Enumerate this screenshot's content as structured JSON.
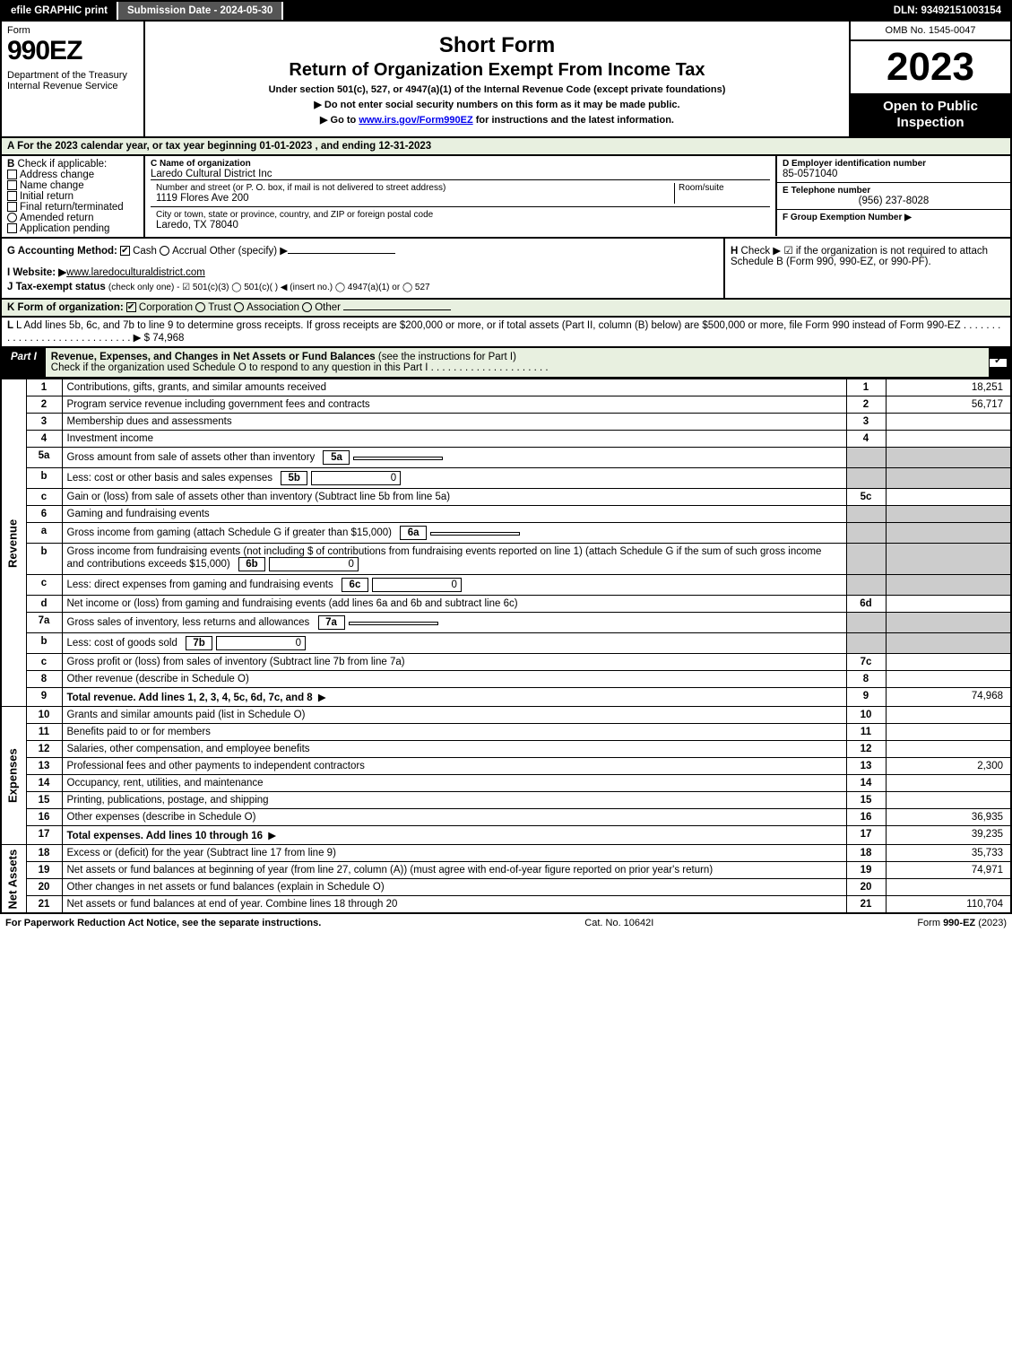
{
  "topbar": {
    "efile": "efile GRAPHIC print",
    "subdate": "Submission Date - 2024-05-30",
    "dln": "DLN: 93492151003154"
  },
  "header": {
    "form_label": "Form",
    "form_num": "990EZ",
    "dept": "Department of the Treasury\nInternal Revenue Service",
    "title1": "Short Form",
    "title2": "Return of Organization Exempt From Income Tax",
    "sub1": "Under section 501(c), 527, or 4947(a)(1) of the Internal Revenue Code (except private foundations)",
    "sub2": "▶ Do not enter social security numbers on this form as it may be made public.",
    "sub3_pre": "▶ Go to ",
    "sub3_link": "www.irs.gov/Form990EZ",
    "sub3_post": " for instructions and the latest information.",
    "omb": "OMB No. 1545-0047",
    "year": "2023",
    "openpub": "Open to Public Inspection"
  },
  "a": "A  For the 2023 calendar year, or tax year beginning 01-01-2023 , and ending 12-31-2023",
  "b": {
    "label": "B",
    "check": "Check if applicable:",
    "opts": [
      "Address change",
      "Name change",
      "Initial return",
      "Final return/terminated",
      "Amended return",
      "Application pending"
    ]
  },
  "c": {
    "name_label": "C Name of organization",
    "name": "Laredo Cultural District Inc",
    "street_label": "Number and street (or P. O. box, if mail is not delivered to street address)",
    "street": "1119 Flores Ave 200",
    "room_label": "Room/suite",
    "city_label": "City or town, state or province, country, and ZIP or foreign postal code",
    "city": "Laredo, TX  78040"
  },
  "d": {
    "label": "D Employer identification number",
    "val": "85-0571040"
  },
  "e": {
    "label": "E Telephone number",
    "val": "(956) 237-8028"
  },
  "f": {
    "label": "F Group Exemption Number  ▶"
  },
  "g": {
    "label": "G Accounting Method:",
    "opts": [
      "Cash",
      "Accrual",
      "Other (specify) ▶"
    ],
    "checked": 0
  },
  "h": {
    "label": "H",
    "text": "Check ▶ ☑ if the organization is not required to attach Schedule B (Form 990, 990-EZ, or 990-PF)."
  },
  "i": {
    "label": "I Website: ▶",
    "val": "www.laredoculturaldistrict.com"
  },
  "j": {
    "label": "J Tax-exempt status",
    "text": "(check only one) - ☑ 501(c)(3) ◯ 501(c)(  ) ◀ (insert no.) ◯ 4947(a)(1) or ◯ 527"
  },
  "k": {
    "label": "K Form of organization:",
    "opts": [
      "Corporation",
      "Trust",
      "Association",
      "Other"
    ],
    "checked": 0
  },
  "l": {
    "text": "L Add lines 5b, 6c, and 7b to line 9 to determine gross receipts. If gross receipts are $200,000 or more, or if total assets (Part II, column (B) below) are $500,000 or more, file Form 990 instead of Form 990-EZ",
    "dots": ". . . . . . . . . . . . . . . . . . . . . . . . . . . . . ▶",
    "val": "$ 74,968"
  },
  "part1": {
    "tag": "Part I",
    "title": "Revenue, Expenses, and Changes in Net Assets or Fund Balances",
    "note": "(see the instructions for Part I)",
    "check_text": "Check if the organization used Schedule O to respond to any question in this Part I . . . . . . . . . . . . . . . . . . . . ."
  },
  "revenue": {
    "side": "Revenue",
    "lines": [
      {
        "ln": "1",
        "desc": "Contributions, gifts, grants, and similar amounts received",
        "box": "1",
        "val": "18,251"
      },
      {
        "ln": "2",
        "desc": "Program service revenue including government fees and contracts",
        "box": "2",
        "val": "56,717"
      },
      {
        "ln": "3",
        "desc": "Membership dues and assessments",
        "box": "3",
        "val": ""
      },
      {
        "ln": "4",
        "desc": "Investment income",
        "box": "4",
        "val": ""
      },
      {
        "ln": "5a",
        "desc": "Gross amount from sale of assets other than inventory",
        "sub": "5a",
        "subval": "",
        "box": "",
        "val": "",
        "gray": true
      },
      {
        "ln": "b",
        "desc": "Less: cost or other basis and sales expenses",
        "sub": "5b",
        "subval": "0",
        "box": "",
        "val": "",
        "gray": true
      },
      {
        "ln": "c",
        "desc": "Gain or (loss) from sale of assets other than inventory (Subtract line 5b from line 5a)",
        "box": "5c",
        "val": ""
      },
      {
        "ln": "6",
        "desc": "Gaming and fundraising events",
        "box": "",
        "val": "",
        "gray": true,
        "noboxcol": true
      },
      {
        "ln": "a",
        "desc": "Gross income from gaming (attach Schedule G if greater than $15,000)",
        "sub": "6a",
        "subval": "",
        "box": "",
        "val": "",
        "gray": true
      },
      {
        "ln": "b",
        "desc": "Gross income from fundraising events (not including $                    of contributions from fundraising events reported on line 1) (attach Schedule G if the sum of such gross income and contributions exceeds $15,000)",
        "sub": "6b",
        "subval": "0",
        "box": "",
        "val": "",
        "gray": true
      },
      {
        "ln": "c",
        "desc": "Less: direct expenses from gaming and fundraising events",
        "sub": "6c",
        "subval": "0",
        "box": "",
        "val": "",
        "gray": true
      },
      {
        "ln": "d",
        "desc": "Net income or (loss) from gaming and fundraising events (add lines 6a and 6b and subtract line 6c)",
        "box": "6d",
        "val": ""
      },
      {
        "ln": "7a",
        "desc": "Gross sales of inventory, less returns and allowances",
        "sub": "7a",
        "subval": "",
        "box": "",
        "val": "",
        "gray": true
      },
      {
        "ln": "b",
        "desc": "Less: cost of goods sold",
        "sub": "7b",
        "subval": "0",
        "box": "",
        "val": "",
        "gray": true
      },
      {
        "ln": "c",
        "desc": "Gross profit or (loss) from sales of inventory (Subtract line 7b from line 7a)",
        "box": "7c",
        "val": ""
      },
      {
        "ln": "8",
        "desc": "Other revenue (describe in Schedule O)",
        "box": "8",
        "val": ""
      },
      {
        "ln": "9",
        "desc": "Total revenue. Add lines 1, 2, 3, 4, 5c, 6d, 7c, and 8",
        "box": "9",
        "val": "74,968",
        "bold": true,
        "arrow": true
      }
    ]
  },
  "expenses": {
    "side": "Expenses",
    "lines": [
      {
        "ln": "10",
        "desc": "Grants and similar amounts paid (list in Schedule O)",
        "box": "10",
        "val": ""
      },
      {
        "ln": "11",
        "desc": "Benefits paid to or for members",
        "box": "11",
        "val": ""
      },
      {
        "ln": "12",
        "desc": "Salaries, other compensation, and employee benefits",
        "box": "12",
        "val": ""
      },
      {
        "ln": "13",
        "desc": "Professional fees and other payments to independent contractors",
        "box": "13",
        "val": "2,300"
      },
      {
        "ln": "14",
        "desc": "Occupancy, rent, utilities, and maintenance",
        "box": "14",
        "val": ""
      },
      {
        "ln": "15",
        "desc": "Printing, publications, postage, and shipping",
        "box": "15",
        "val": ""
      },
      {
        "ln": "16",
        "desc": "Other expenses (describe in Schedule O)",
        "box": "16",
        "val": "36,935"
      },
      {
        "ln": "17",
        "desc": "Total expenses. Add lines 10 through 16",
        "box": "17",
        "val": "39,235",
        "bold": true,
        "arrow": true
      }
    ]
  },
  "netassets": {
    "side": "Net Assets",
    "lines": [
      {
        "ln": "18",
        "desc": "Excess or (deficit) for the year (Subtract line 17 from line 9)",
        "box": "18",
        "val": "35,733"
      },
      {
        "ln": "19",
        "desc": "Net assets or fund balances at beginning of year (from line 27, column (A)) (must agree with end-of-year figure reported on prior year's return)",
        "box": "19",
        "val": "74,971"
      },
      {
        "ln": "20",
        "desc": "Other changes in net assets or fund balances (explain in Schedule O)",
        "box": "20",
        "val": ""
      },
      {
        "ln": "21",
        "desc": "Net assets or fund balances at end of year. Combine lines 18 through 20",
        "box": "21",
        "val": "110,704"
      }
    ]
  },
  "footer": {
    "l": "For Paperwork Reduction Act Notice, see the separate instructions.",
    "m": "Cat. No. 10642I",
    "r": "Form 990-EZ (2023)"
  },
  "colors": {
    "greenbg": "#e8f0e0",
    "gray": "#cccccc"
  }
}
